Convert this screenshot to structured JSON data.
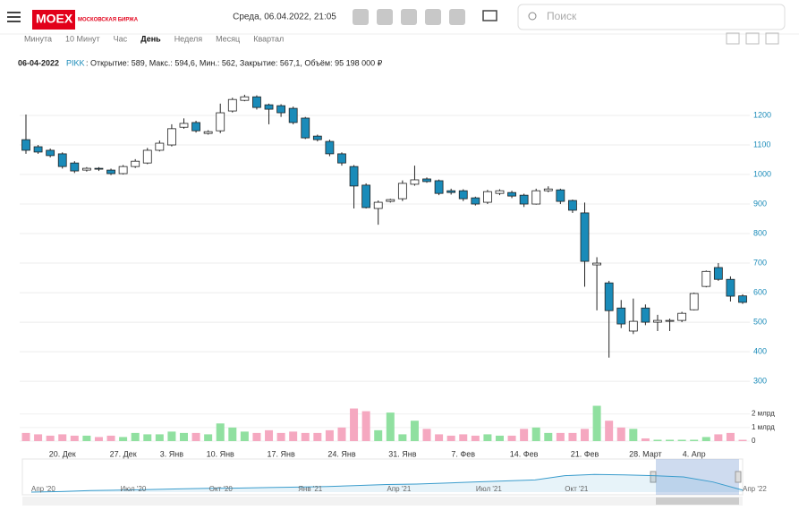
{
  "header": {
    "logo": "MOEX",
    "logo_sub": "МОСКОВСКАЯ БИРЖА",
    "datetime": "Среда, 06.04.2022, 21:05",
    "search_placeholder": "Поиск"
  },
  "tabs": [
    "Минута",
    "10 Минут",
    "Час",
    "День",
    "Неделя",
    "Месяц",
    "Квартал"
  ],
  "active_tab": "День",
  "info": {
    "date": "06-04-2022",
    "ticker": "PIKK",
    "summary": ": Открытие: 589, Макс.: 594,6, Мин.: 562, Закрытие: 567,1, Объём: 95 198 000 ₽"
  },
  "chart_data": [
    {
      "type": "candlestick",
      "up_color": "#ffffff",
      "down_color": "#1a8bb9",
      "grid": true,
      "categories": [
        null,
        null,
        null,
        "20. Дек",
        null,
        null,
        null,
        null,
        "27. Дек",
        null,
        null,
        null,
        "3. Янв",
        null,
        null,
        null,
        "10. Янв",
        null,
        null,
        null,
        null,
        "17. Янв",
        null,
        null,
        null,
        null,
        "24. Янв",
        null,
        null,
        null,
        null,
        "31. Янв",
        null,
        null,
        null,
        null,
        "7. Фев",
        null,
        null,
        null,
        null,
        "14. Фев",
        null,
        null,
        null,
        null,
        "21. Фев",
        null,
        null,
        null,
        null,
        "28. Март",
        null,
        null,
        null,
        "4. Апр",
        null,
        null,
        null,
        null
      ],
      "open": [
        1118,
        1094,
        1082,
        1070,
        1039,
        1015,
        1021,
        1015,
        1003,
        1027,
        1039,
        1082,
        1100,
        1160,
        1176,
        1139,
        1148,
        1215,
        1251,
        1263,
        1236,
        1233,
        1224,
        1191,
        1130,
        1112,
        1070,
        1027,
        964,
        885,
        909,
        918,
        967,
        985,
        979,
        945,
        945,
        921,
        906,
        936,
        939,
        930,
        900,
        945,
        948,
        912,
        870,
        694,
        633,
        548,
        470,
        548,
        500,
        503,
        506,
        542,
        621,
        685,
        645,
        589
      ],
      "high": [
        1203,
        1100,
        1088,
        1075,
        1045,
        1025,
        1025,
        1020,
        1032,
        1052,
        1090,
        1115,
        1170,
        1190,
        1182,
        1150,
        1240,
        1260,
        1270,
        1268,
        1240,
        1238,
        1230,
        1195,
        1135,
        1118,
        1075,
        1032,
        970,
        912,
        918,
        980,
        1030,
        990,
        983,
        952,
        950,
        925,
        948,
        950,
        945,
        935,
        952,
        960,
        952,
        915,
        905,
        720,
        640,
        575,
        580,
        560,
        525,
        512,
        535,
        600,
        675,
        700,
        655,
        594.6
      ],
      "low": [
        1070,
        1070,
        1058,
        1020,
        1005,
        1010,
        1012,
        998,
        1000,
        1022,
        1035,
        1078,
        1095,
        1155,
        1142,
        1135,
        1140,
        1210,
        1248,
        1220,
        1170,
        1195,
        1170,
        1120,
        1112,
        1062,
        1030,
        885,
        885,
        830,
        905,
        910,
        962,
        972,
        930,
        932,
        910,
        895,
        900,
        930,
        920,
        890,
        898,
        940,
        900,
        870,
        620,
        540,
        380,
        480,
        460,
        490,
        470,
        470,
        500,
        540,
        618,
        640,
        570,
        562
      ],
      "close": [
        1082,
        1076,
        1064,
        1027,
        1012,
        1021,
        1018,
        1003,
        1027,
        1045,
        1082,
        1106,
        1155,
        1173,
        1148,
        1145,
        1209,
        1254,
        1263,
        1227,
        1221,
        1209,
        1176,
        1124,
        1118,
        1070,
        1039,
        961,
        888,
        906,
        915,
        970,
        982,
        976,
        936,
        939,
        918,
        900,
        942,
        945,
        927,
        900,
        945,
        951,
        909,
        879,
        706,
        700,
        539,
        494,
        503,
        500,
        506,
        506,
        530,
        597,
        672,
        645,
        588,
        567.1
      ],
      "ylim": [
        270,
        1300
      ],
      "yticks": [
        300,
        400,
        500,
        600,
        700,
        800,
        900,
        1000,
        1100,
        1200
      ]
    },
    {
      "type": "bar",
      "up_color": "#90e0a0",
      "down_color": "#f5a8c0",
      "values": [
        600000000,
        500000000,
        400000000,
        500000000,
        400000000,
        400000000,
        300000000,
        400000000,
        300000000,
        600000000,
        500000000,
        500000000,
        700000000,
        600000000,
        600000000,
        500000000,
        1300000000,
        1000000000,
        700000000,
        600000000,
        800000000,
        600000000,
        700000000,
        600000000,
        600000000,
        800000000,
        1000000000,
        2400000000,
        2200000000,
        800000000,
        2100000000,
        500000000,
        1500000000,
        900000000,
        500000000,
        400000000,
        500000000,
        400000000,
        500000000,
        400000000,
        400000000,
        900000000,
        1000000000,
        600000000,
        600000000,
        600000000,
        900000000,
        2600000000,
        1500000000,
        1000000000,
        900000000,
        200000000,
        100000000,
        100000000,
        100000000,
        100000000,
        300000000,
        500000000,
        600000000,
        95198000
      ],
      "ylim": [
        0,
        2700000000
      ],
      "yticks": [
        {
          "value": 0,
          "label": "0"
        },
        {
          "value": 1000000000,
          "label": "1 млрд"
        },
        {
          "value": 2000000000,
          "label": "2 млрд"
        }
      ]
    },
    {
      "type": "line",
      "color": "#3a9ccc",
      "categories": [
        "Апр '20",
        null,
        null,
        "Июл '20",
        null,
        null,
        "Окт '20",
        null,
        null,
        "Янв '21",
        null,
        null,
        "Апр '21",
        null,
        null,
        "Июл '21",
        null,
        null,
        "Окт '21",
        null,
        null,
        null,
        null,
        null,
        "Апр '22"
      ],
      "values": [
        500,
        520,
        560,
        580,
        600,
        630,
        650,
        660,
        680,
        700,
        720,
        760,
        800,
        820,
        860,
        900,
        940,
        980,
        1150,
        1200,
        1180,
        1150,
        1100,
        900,
        580
      ]
    }
  ]
}
